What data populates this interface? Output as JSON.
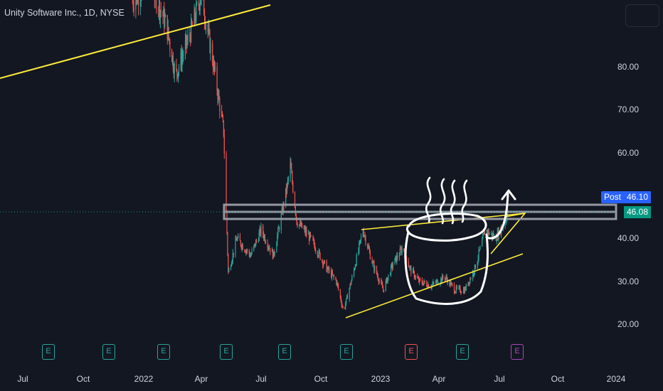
{
  "symbol": {
    "title": "Unity Software Inc., 1D, NYSE"
  },
  "colors": {
    "background": "#131722",
    "up": "#26a69a",
    "down": "#ef5350",
    "trendline": "#ffeb3b",
    "box": "#9598a1",
    "drawing": "#ffffff",
    "post_badge": "#2962ff",
    "last_badge": "#089981",
    "earnings_default": "#26a69a",
    "earnings_miss": "#ef5350",
    "earnings_upcoming": "#ab47bc"
  },
  "axis": {
    "price_ticks": [
      "20.00",
      "30.00",
      "40.00",
      "60.00",
      "70.00",
      "80.00"
    ],
    "time_ticks": [
      "Jul",
      "Oct",
      "2022",
      "Apr",
      "Jul",
      "Oct",
      "2023",
      "Apr",
      "Jul",
      "Oct",
      "2024"
    ]
  },
  "badges": {
    "post_label": "Post",
    "post_price": "46.10",
    "last_price": "46.08"
  },
  "earnings": [
    {
      "label": "E",
      "status": "default"
    },
    {
      "label": "E",
      "status": "default"
    },
    {
      "label": "E",
      "status": "default"
    },
    {
      "label": "E",
      "status": "default"
    },
    {
      "label": "E",
      "status": "default"
    },
    {
      "label": "E",
      "status": "default"
    },
    {
      "label": "E",
      "status": "miss"
    },
    {
      "label": "E",
      "status": "default"
    },
    {
      "label": "E",
      "status": "upcoming"
    }
  ],
  "chart_data": {
    "type": "candlestick",
    "title": "Unity Software Inc., 1D, NYSE",
    "ylim": [
      15,
      105
    ],
    "x_ticks": [
      "Jul",
      "Oct",
      "2022",
      "Apr",
      "Jul",
      "Oct",
      "2023",
      "Apr",
      "Jul",
      "Oct",
      "2024"
    ],
    "y_ticks": [
      20,
      30,
      40,
      60,
      70,
      80
    ],
    "last_price": 46.08,
    "post_market_price": 46.1,
    "price_path": [
      [
        "2021-12-15",
        95
      ],
      [
        "2022-01-10",
        100
      ],
      [
        "2022-02-05",
        90
      ],
      [
        "2022-02-20",
        78
      ],
      [
        "2022-03-15",
        88
      ],
      [
        "2022-04-01",
        97
      ],
      [
        "2022-04-20",
        80
      ],
      [
        "2022-05-05",
        65
      ],
      [
        "2022-05-12",
        32
      ],
      [
        "2022-05-25",
        40
      ],
      [
        "2022-06-15",
        36
      ],
      [
        "2022-07-01",
        42
      ],
      [
        "2022-07-20",
        36
      ],
      [
        "2022-08-10",
        52
      ],
      [
        "2022-08-15",
        57
      ],
      [
        "2022-08-25",
        44
      ],
      [
        "2022-09-15",
        40
      ],
      [
        "2022-10-10",
        33
      ],
      [
        "2022-10-25",
        30
      ],
      [
        "2022-11-05",
        23
      ],
      [
        "2022-11-20",
        32
      ],
      [
        "2022-12-05",
        42
      ],
      [
        "2022-12-20",
        34
      ],
      [
        "2023-01-05",
        28
      ],
      [
        "2023-01-20",
        34
      ],
      [
        "2023-02-05",
        38
      ],
      [
        "2023-02-15",
        33
      ],
      [
        "2023-03-01",
        30
      ],
      [
        "2023-03-20",
        29
      ],
      [
        "2023-04-10",
        31
      ],
      [
        "2023-04-25",
        28
      ],
      [
        "2023-05-10",
        28
      ],
      [
        "2023-05-25",
        33
      ],
      [
        "2023-06-10",
        42
      ],
      [
        "2023-06-25",
        40
      ],
      [
        "2023-07-10",
        44
      ],
      [
        "2023-07-14",
        46.08
      ]
    ]
  }
}
